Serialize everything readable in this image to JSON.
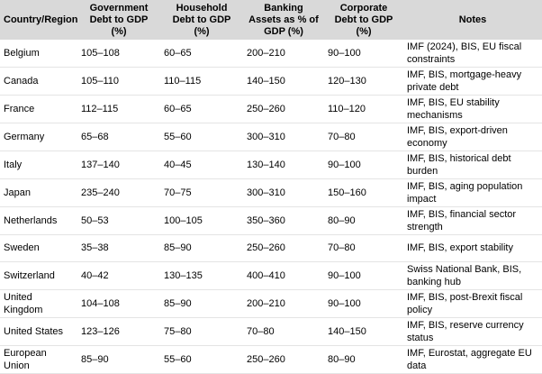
{
  "table": {
    "header": [
      "Country/Region",
      "Government Debt to GDP (%)",
      "Household Debt to GDP (%)",
      "Banking Assets as % of GDP (%)",
      "Corporate Debt to GDP (%)",
      "Notes"
    ],
    "rows": [
      [
        "Belgium",
        "105–108",
        "60–65",
        "200–210",
        "90–100",
        "IMF (2024), BIS, EU fiscal constraints"
      ],
      [
        "Canada",
        "105–110",
        "110–115",
        "140–150",
        "120–130",
        "IMF, BIS, mortgage-heavy private debt"
      ],
      [
        "France",
        "112–115",
        "60–65",
        "250–260",
        "110–120",
        "IMF, BIS, EU stability mechanisms"
      ],
      [
        "Germany",
        "65–68",
        "55–60",
        "300–310",
        "70–80",
        "IMF, BIS, export-driven economy"
      ],
      [
        "Italy",
        "137–140",
        "40–45",
        "130–140",
        "90–100",
        "IMF, BIS, historical debt burden"
      ],
      [
        "Japan",
        "235–240",
        "70–75",
        "300–310",
        "150–160",
        "IMF, BIS, aging population impact"
      ],
      [
        "Netherlands",
        "50–53",
        "100–105",
        "350–360",
        "80–90",
        "IMF, BIS, financial sector strength"
      ],
      [
        "Sweden",
        "35–38",
        "85–90",
        "250–260",
        "70–80",
        "IMF, BIS, export stability"
      ],
      [
        "Switzerland",
        "40–42",
        "130–135",
        "400–410",
        "90–100",
        "Swiss National Bank, BIS, banking hub"
      ],
      [
        "United Kingdom",
        "104–108",
        "85–90",
        "200–210",
        "90–100",
        "IMF, BIS, post-Brexit fiscal policy"
      ],
      [
        "United States",
        "123–126",
        "75–80",
        "70–80",
        "140–150",
        "IMF, BIS, reserve currency status"
      ],
      [
        "European Union",
        "85–90",
        "55–60",
        "250–260",
        "80–90",
        "IMF, Eurostat, aggregate EU data"
      ]
    ]
  }
}
